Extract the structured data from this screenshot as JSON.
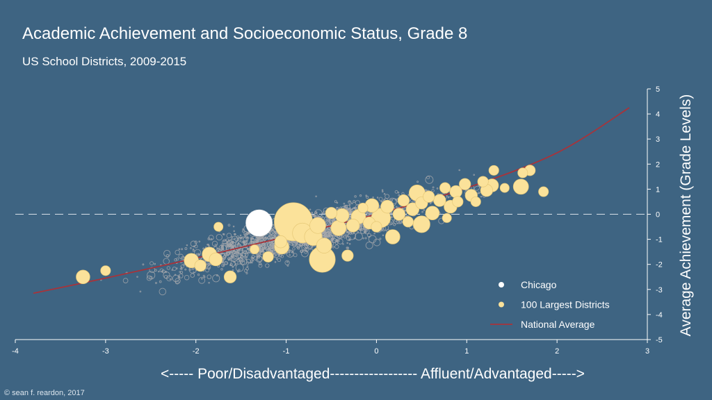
{
  "chart_data": {
    "type": "scatter",
    "title": "Academic Achievement and Socioeconomic Status, Grade 8",
    "subtitle": "US School Districts, 2009-2015",
    "xlabel": "<----- Poor/Disadvantaged------------------ Affluent/Advantaged----->",
    "ylabel": "Average Achievement (Grade Levels)",
    "xlim": [
      -4,
      3
    ],
    "ylim": [
      -5,
      5
    ],
    "x_ticks": [
      "-4",
      "-3",
      "-2",
      "-1",
      "0",
      "1",
      "2",
      "3"
    ],
    "y_ticks": [
      "-5",
      "-4",
      "-3",
      "-2",
      "-1",
      "0",
      "1",
      "2",
      "3",
      "4",
      "5"
    ],
    "reference_line_y": 0,
    "legend": {
      "placement": "bottom-right",
      "items": [
        {
          "label": "Chicago",
          "color": "#ffffff",
          "marker": "dot"
        },
        {
          "label": "100 Largest Districts",
          "color": "#fbe29a",
          "marker": "dot"
        },
        {
          "label": "National Average",
          "color": "#a8333a",
          "marker": "line"
        }
      ]
    },
    "colors": {
      "all_districts": "#a7a9ac",
      "largest_districts": "#fbe29a",
      "chicago": "#ffffff",
      "national_average": "#a8333a",
      "background": "#3e6482"
    },
    "series": [
      {
        "name": "Chicago",
        "points": [
          {
            "x": -1.3,
            "y": -0.35,
            "size": 5
          }
        ]
      },
      {
        "name": "100 Largest Districts",
        "points": [
          {
            "x": -3.25,
            "y": -2.5,
            "size": 1.8
          },
          {
            "x": -3.0,
            "y": -2.25,
            "size": 1.3
          },
          {
            "x": -2.05,
            "y": -1.85,
            "size": 1.9
          },
          {
            "x": -1.85,
            "y": -1.6,
            "size": 1.9
          },
          {
            "x": -1.95,
            "y": -2.05,
            "size": 1.5
          },
          {
            "x": -1.78,
            "y": -1.8,
            "size": 1.7
          },
          {
            "x": -1.75,
            "y": -0.5,
            "size": 1.2
          },
          {
            "x": -1.62,
            "y": -2.5,
            "size": 1.6
          },
          {
            "x": -1.35,
            "y": -1.4,
            "size": 1.2
          },
          {
            "x": -1.2,
            "y": -1.7,
            "size": 1.4
          },
          {
            "x": -1.06,
            "y": -1.1,
            "size": 1.6
          },
          {
            "x": -1.05,
            "y": -1.3,
            "size": 1.9
          },
          {
            "x": -0.92,
            "y": -0.3,
            "size": 5.0
          },
          {
            "x": -0.82,
            "y": -0.75,
            "size": 2.6
          },
          {
            "x": -0.7,
            "y": -0.9,
            "size": 2.3
          },
          {
            "x": -0.65,
            "y": -0.45,
            "size": 2.1
          },
          {
            "x": -0.6,
            "y": -1.8,
            "size": 3.4
          },
          {
            "x": -0.58,
            "y": -1.25,
            "size": 2.0
          },
          {
            "x": -0.5,
            "y": 0.05,
            "size": 1.5
          },
          {
            "x": -0.42,
            "y": -0.55,
            "size": 2.0
          },
          {
            "x": -0.38,
            "y": -0.05,
            "size": 1.8
          },
          {
            "x": -0.32,
            "y": -1.65,
            "size": 1.5
          },
          {
            "x": -0.26,
            "y": -0.45,
            "size": 1.7
          },
          {
            "x": -0.2,
            "y": -0.1,
            "size": 1.9
          },
          {
            "x": -0.15,
            "y": 0.25,
            "size": 1.3
          },
          {
            "x": -0.08,
            "y": -0.35,
            "size": 1.6
          },
          {
            "x": -0.05,
            "y": 0.35,
            "size": 1.8
          },
          {
            "x": 0.0,
            "y": -0.5,
            "size": 1.4
          },
          {
            "x": 0.05,
            "y": -0.15,
            "size": 2.5
          },
          {
            "x": 0.12,
            "y": 0.3,
            "size": 1.7
          },
          {
            "x": 0.18,
            "y": -0.9,
            "size": 1.9
          },
          {
            "x": 0.25,
            "y": 0.0,
            "size": 1.6
          },
          {
            "x": 0.3,
            "y": 0.55,
            "size": 1.5
          },
          {
            "x": 0.35,
            "y": -0.3,
            "size": 1.4
          },
          {
            "x": 0.4,
            "y": 0.2,
            "size": 1.7
          },
          {
            "x": 0.45,
            "y": 0.85,
            "size": 2.1
          },
          {
            "x": 0.5,
            "y": 0.45,
            "size": 1.6
          },
          {
            "x": 0.5,
            "y": -0.4,
            "size": 2.2
          },
          {
            "x": 0.58,
            "y": 0.7,
            "size": 1.5
          },
          {
            "x": 0.62,
            "y": 0.05,
            "size": 1.8
          },
          {
            "x": 0.7,
            "y": 0.55,
            "size": 1.6
          },
          {
            "x": 0.76,
            "y": 1.05,
            "size": 1.4
          },
          {
            "x": 0.82,
            "y": 0.3,
            "size": 1.7
          },
          {
            "x": 0.88,
            "y": 0.9,
            "size": 1.6
          },
          {
            "x": 0.78,
            "y": -0.15,
            "size": 1.2
          },
          {
            "x": 0.9,
            "y": 0.5,
            "size": 1.4
          },
          {
            "x": 0.98,
            "y": 1.2,
            "size": 1.5
          },
          {
            "x": 1.05,
            "y": 0.75,
            "size": 1.6
          },
          {
            "x": 1.1,
            "y": 0.5,
            "size": 1.3
          },
          {
            "x": 1.18,
            "y": 1.3,
            "size": 1.4
          },
          {
            "x": 1.22,
            "y": 0.95,
            "size": 1.6
          },
          {
            "x": 1.28,
            "y": 1.15,
            "size": 1.7
          },
          {
            "x": 1.3,
            "y": 1.75,
            "size": 1.3
          },
          {
            "x": 1.42,
            "y": 1.05,
            "size": 1.2
          },
          {
            "x": 1.6,
            "y": 1.1,
            "size": 2.0
          },
          {
            "x": 1.62,
            "y": 1.65,
            "size": 1.3
          },
          {
            "x": 1.7,
            "y": 1.75,
            "size": 1.4
          },
          {
            "x": 1.85,
            "y": 0.9,
            "size": 1.3
          }
        ]
      },
      {
        "name": "National Average",
        "points": [
          {
            "x": -3.8,
            "y": -3.15
          },
          {
            "x": -3.0,
            "y": -2.55
          },
          {
            "x": -2.0,
            "y": -1.75
          },
          {
            "x": -1.0,
            "y": -0.9
          },
          {
            "x": 0.0,
            "y": 0.0
          },
          {
            "x": 1.0,
            "y": 1.05
          },
          {
            "x": 2.0,
            "y": 2.45
          },
          {
            "x": 2.8,
            "y": 4.25
          }
        ]
      }
    ]
  },
  "credit": "© sean f. reardon, 2017"
}
